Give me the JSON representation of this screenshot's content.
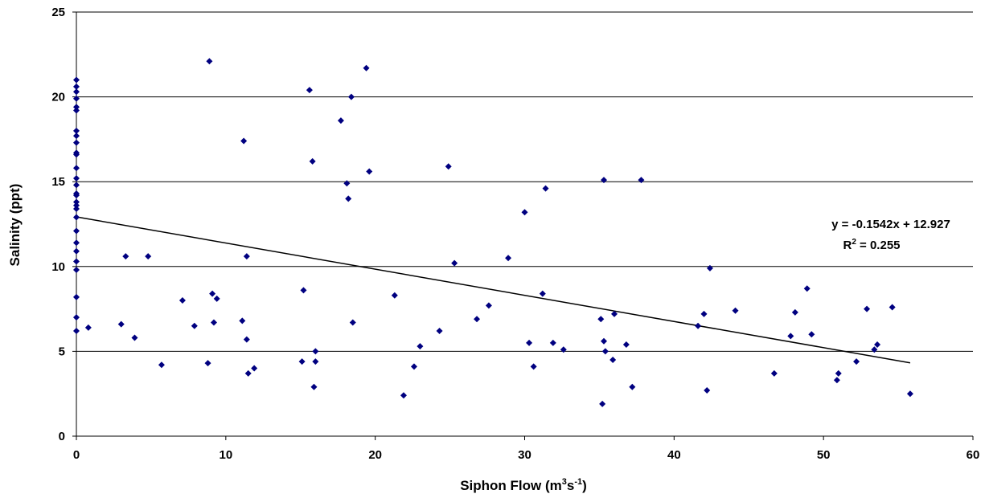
{
  "chart_data": {
    "type": "scatter",
    "xlabel": "Siphon Flow (m",
    "xlabel_sup1": "3",
    "xlabel_mid": "s",
    "xlabel_sup2": "-1",
    "xlabel_end": ")",
    "ylabel": "Salinity (ppt)",
    "xlim": [
      0,
      60
    ],
    "ylim": [
      0,
      25
    ],
    "x_ticks": [
      0,
      10,
      20,
      30,
      40,
      50,
      60
    ],
    "y_ticks": [
      0,
      5,
      10,
      15,
      20,
      25
    ],
    "grid": "horizontal",
    "marker_color": "#000080",
    "trendline": {
      "slope": -0.1542,
      "intercept": 12.927,
      "x_range": [
        0,
        55.8
      ],
      "equation_label": "y = -0.1542x + 12.927",
      "r2_prefix": "R",
      "r2_sup": "2",
      "r2_suffix": " = 0.255"
    },
    "points": [
      [
        0,
        21.0
      ],
      [
        0,
        20.6
      ],
      [
        0,
        20.3
      ],
      [
        0,
        19.9
      ],
      [
        0,
        19.4
      ],
      [
        0,
        19.2
      ],
      [
        0,
        18.0
      ],
      [
        0,
        17.7
      ],
      [
        0,
        17.3
      ],
      [
        0,
        16.7
      ],
      [
        0,
        16.6
      ],
      [
        0,
        15.8
      ],
      [
        0,
        15.2
      ],
      [
        0,
        14.8
      ],
      [
        0,
        14.3
      ],
      [
        0,
        14.2
      ],
      [
        0,
        13.8
      ],
      [
        0,
        13.6
      ],
      [
        0,
        13.4
      ],
      [
        0,
        12.9
      ],
      [
        0,
        12.1
      ],
      [
        0,
        11.4
      ],
      [
        0,
        10.9
      ],
      [
        0,
        10.3
      ],
      [
        0,
        9.8
      ],
      [
        0,
        8.2
      ],
      [
        0,
        7.0
      ],
      [
        0,
        6.2
      ],
      [
        0.8,
        6.4
      ],
      [
        3.0,
        6.6
      ],
      [
        3.3,
        10.6
      ],
      [
        3.9,
        5.8
      ],
      [
        4.8,
        10.6
      ],
      [
        5.7,
        4.2
      ],
      [
        7.1,
        8.0
      ],
      [
        7.9,
        6.5
      ],
      [
        8.8,
        4.3
      ],
      [
        8.9,
        22.1
      ],
      [
        9.1,
        8.4
      ],
      [
        9.2,
        6.7
      ],
      [
        9.4,
        8.1
      ],
      [
        11.1,
        6.8
      ],
      [
        11.2,
        17.4
      ],
      [
        11.4,
        10.6
      ],
      [
        11.4,
        5.7
      ],
      [
        11.5,
        3.7
      ],
      [
        11.9,
        4.0
      ],
      [
        15.1,
        4.4
      ],
      [
        15.2,
        8.6
      ],
      [
        15.6,
        20.4
      ],
      [
        15.8,
        16.2
      ],
      [
        15.9,
        2.9
      ],
      [
        16.0,
        5.0
      ],
      [
        16.0,
        4.4
      ],
      [
        17.7,
        18.6
      ],
      [
        18.1,
        14.9
      ],
      [
        18.2,
        14.0
      ],
      [
        18.4,
        20.0
      ],
      [
        18.5,
        6.7
      ],
      [
        19.4,
        21.7
      ],
      [
        19.6,
        15.6
      ],
      [
        21.3,
        8.3
      ],
      [
        21.9,
        2.4
      ],
      [
        22.6,
        4.1
      ],
      [
        23.0,
        5.3
      ],
      [
        24.3,
        6.2
      ],
      [
        24.9,
        15.9
      ],
      [
        25.3,
        10.2
      ],
      [
        26.8,
        6.9
      ],
      [
        27.6,
        7.7
      ],
      [
        28.9,
        10.5
      ],
      [
        30.0,
        13.2
      ],
      [
        30.3,
        5.5
      ],
      [
        30.6,
        4.1
      ],
      [
        31.2,
        8.4
      ],
      [
        31.4,
        14.6
      ],
      [
        31.9,
        5.5
      ],
      [
        32.6,
        5.1
      ],
      [
        35.1,
        6.9
      ],
      [
        35.2,
        1.9
      ],
      [
        35.3,
        5.6
      ],
      [
        35.3,
        15.1
      ],
      [
        35.4,
        5.0
      ],
      [
        35.9,
        4.5
      ],
      [
        36.0,
        7.2
      ],
      [
        36.8,
        5.4
      ],
      [
        37.2,
        2.9
      ],
      [
        37.8,
        15.1
      ],
      [
        41.6,
        6.5
      ],
      [
        42.0,
        7.2
      ],
      [
        42.2,
        2.7
      ],
      [
        42.4,
        9.9
      ],
      [
        44.1,
        7.4
      ],
      [
        46.7,
        3.7
      ],
      [
        47.8,
        5.9
      ],
      [
        48.1,
        7.3
      ],
      [
        48.9,
        8.7
      ],
      [
        49.2,
        6.0
      ],
      [
        50.9,
        3.3
      ],
      [
        51.0,
        3.7
      ],
      [
        52.2,
        4.4
      ],
      [
        52.9,
        7.5
      ],
      [
        53.4,
        5.1
      ],
      [
        53.6,
        5.4
      ],
      [
        54.6,
        7.6
      ],
      [
        55.8,
        2.5
      ]
    ]
  }
}
